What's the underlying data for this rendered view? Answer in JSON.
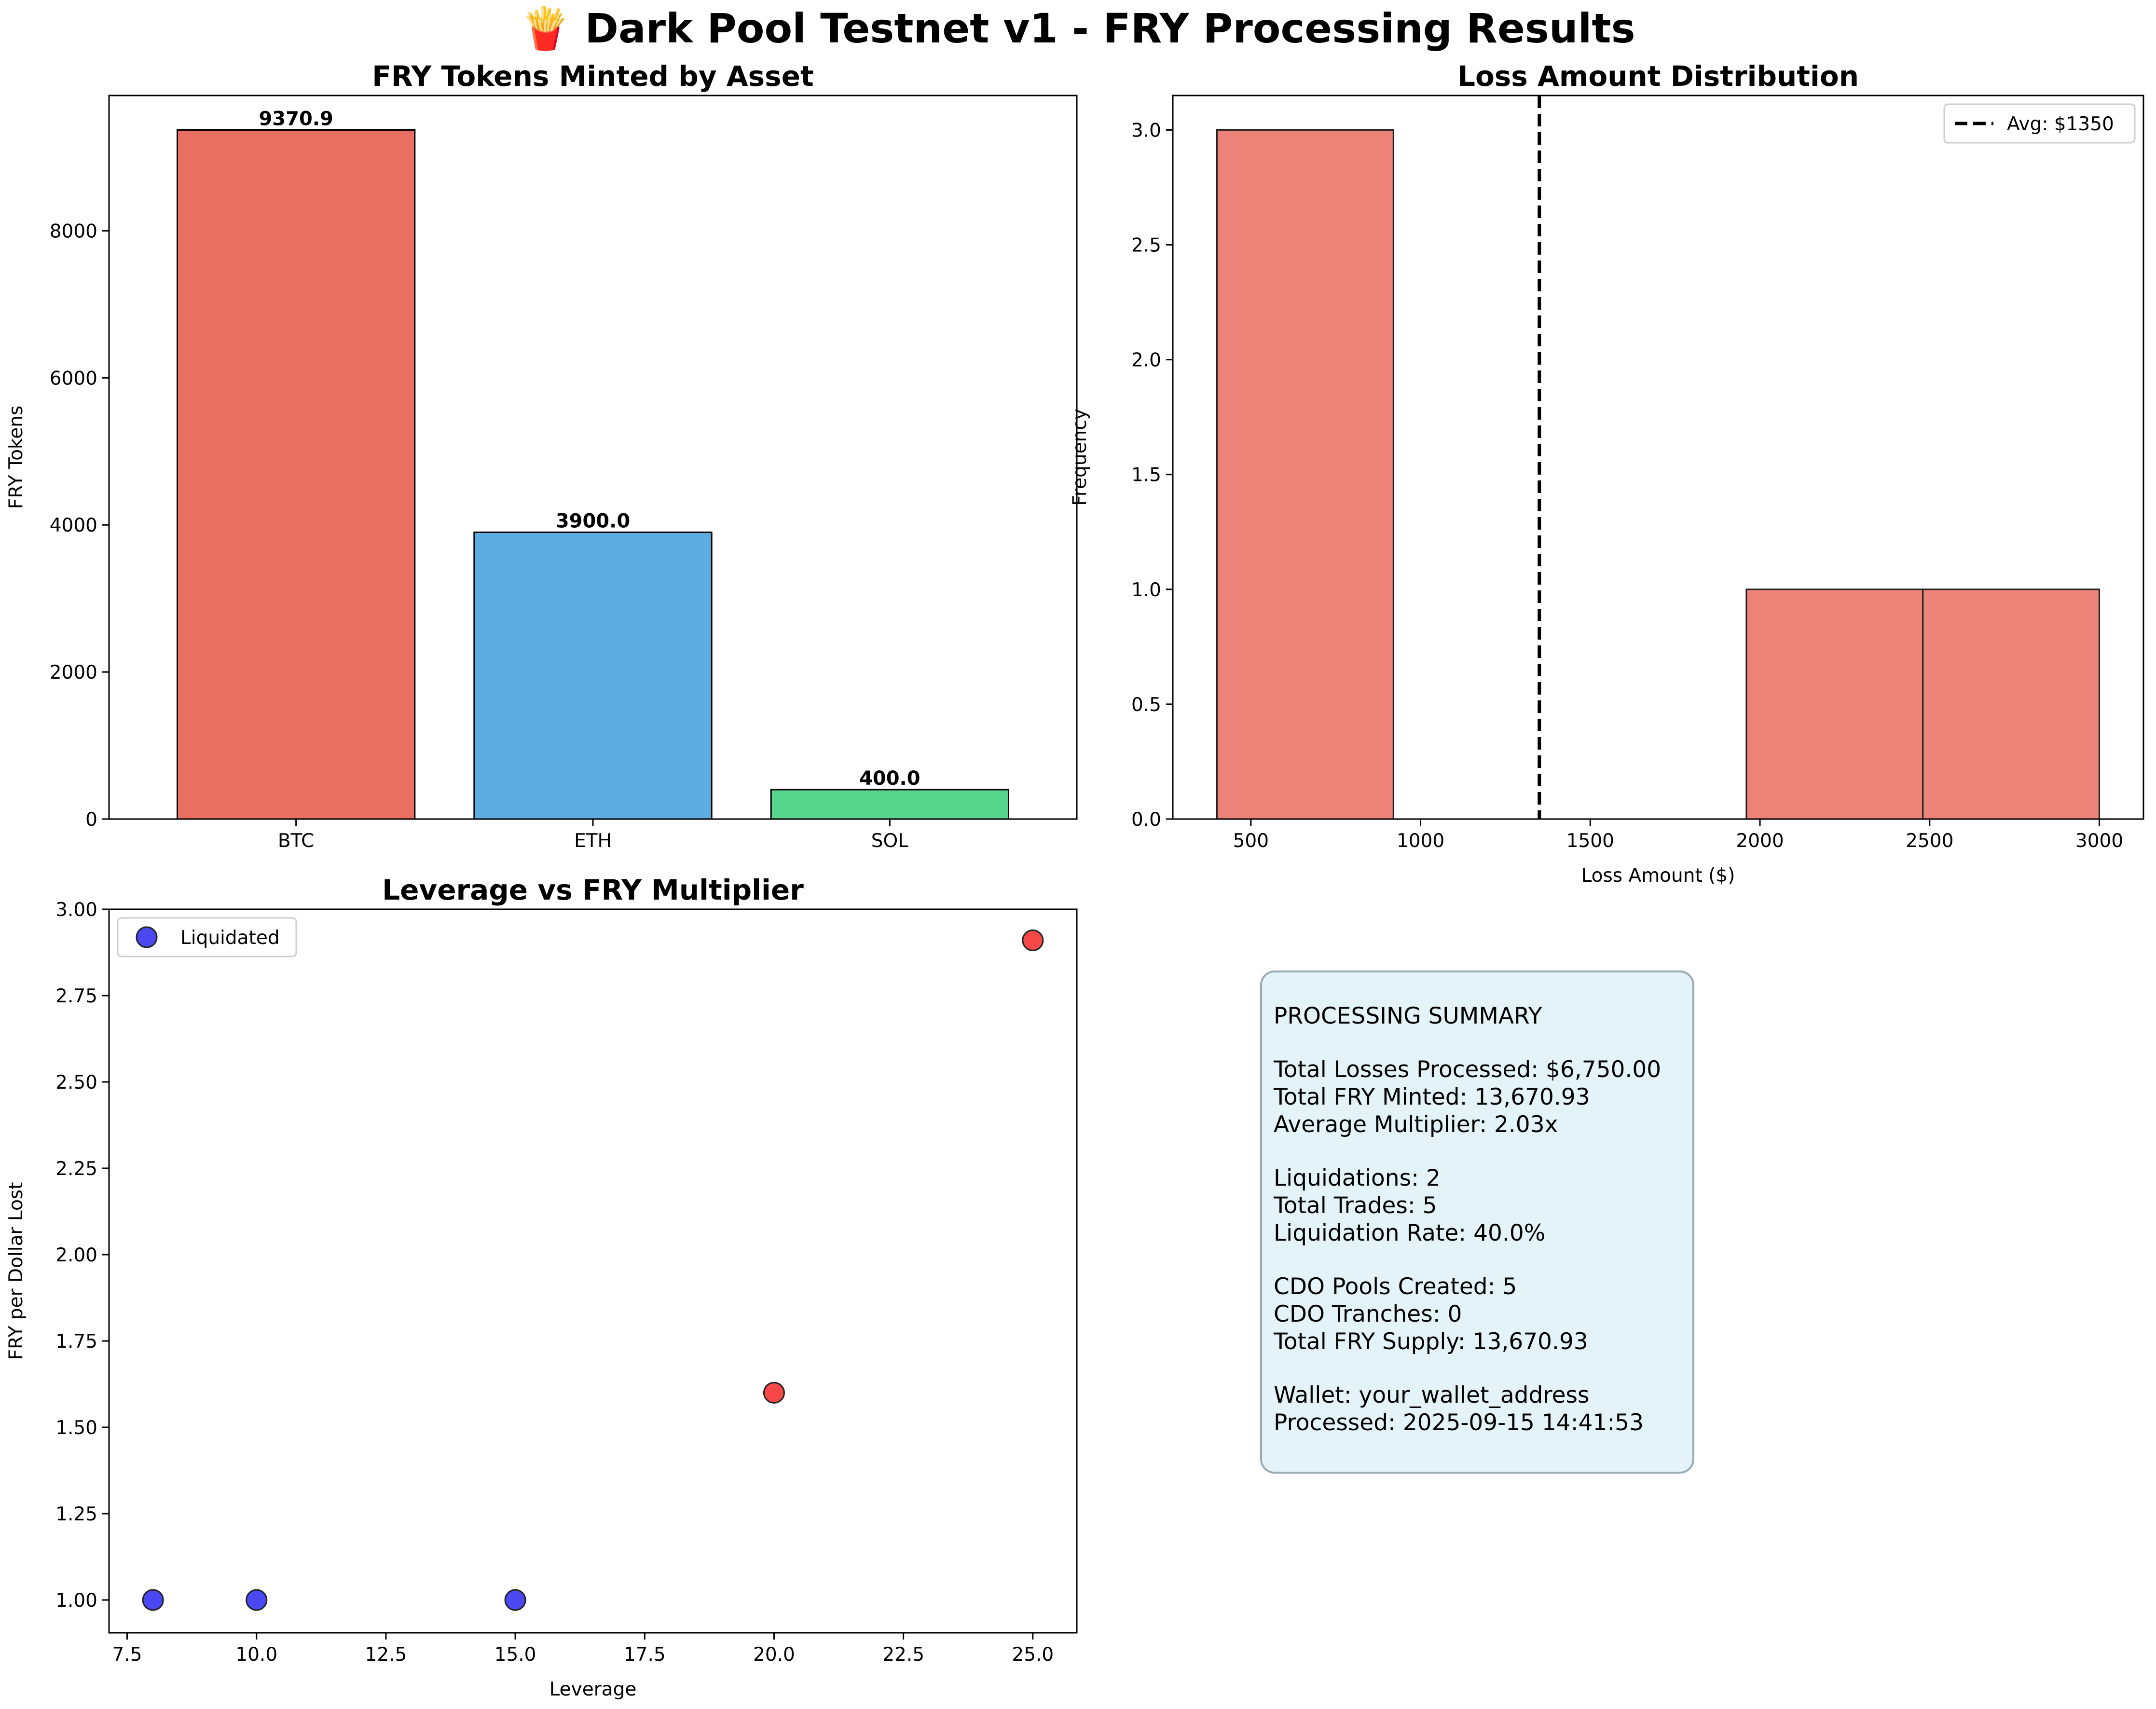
{
  "figure_title": "🍟 Dark Pool Testnet v1 - FRY Processing Results",
  "chart_data": [
    {
      "type": "bar",
      "title": "FRY Tokens Minted by Asset",
      "xlabel": "",
      "ylabel": "FRY Tokens",
      "categories": [
        "BTC",
        "ETH",
        "SOL"
      ],
      "values": [
        9370.9,
        3900.0,
        400.0
      ],
      "value_labels": [
        "9370.9",
        "3900.0",
        "400.0"
      ],
      "colors": [
        "#e96f63",
        "#5dade2",
        "#58d68d"
      ],
      "ylim": [
        0,
        9840
      ],
      "yticks": [
        0,
        2000,
        4000,
        6000,
        8000
      ],
      "ytick_labels": [
        "0",
        "2000",
        "4000",
        "6000",
        "8000"
      ],
      "grid": false
    },
    {
      "type": "bar",
      "subtype": "histogram",
      "title": "Loss Amount Distribution",
      "xlabel": "Loss Amount ($)",
      "ylabel": "Frequency",
      "bins": [
        400,
        920,
        1440,
        1960,
        2480,
        3000
      ],
      "counts": [
        3,
        0,
        0,
        1,
        1
      ],
      "bar_color": "#ec8278",
      "xlim": [
        270,
        3130
      ],
      "ylim": [
        0,
        3.15
      ],
      "xticks": [
        500,
        1000,
        1500,
        2000,
        2500,
        3000
      ],
      "xtick_labels": [
        "500",
        "1000",
        "1500",
        "2000",
        "2500",
        "3000"
      ],
      "yticks": [
        0,
        0.5,
        1.0,
        1.5,
        2.0,
        2.5,
        3.0
      ],
      "ytick_labels": [
        "0.0",
        "0.5",
        "1.0",
        "1.5",
        "2.0",
        "2.5",
        "3.0"
      ],
      "average_line": {
        "x": 1350,
        "label": "Avg: $1350"
      },
      "legend_position": "top-right",
      "grid": false
    },
    {
      "type": "scatter",
      "title": "Leverage vs FRY Multiplier",
      "xlabel": "Leverage",
      "ylabel": "FRY per Dollar Lost",
      "points": [
        {
          "x": 8,
          "y": 1.0,
          "color": "#4a48f0"
        },
        {
          "x": 10,
          "y": 1.0,
          "color": "#4a48f0"
        },
        {
          "x": 15,
          "y": 1.0,
          "color": "#4a48f0"
        },
        {
          "x": 20,
          "y": 1.6,
          "color": "#f64848"
        },
        {
          "x": 25,
          "y": 2.91,
          "color": "#f64848"
        }
      ],
      "xlim": [
        7.15,
        25.85
      ],
      "ylim": [
        0.905,
        3.0
      ],
      "xticks": [
        7.5,
        10,
        12.5,
        15,
        17.5,
        20,
        22.5,
        25
      ],
      "xtick_labels": [
        "7.5",
        "10.0",
        "12.5",
        "15.0",
        "17.5",
        "20.0",
        "22.5",
        "25.0"
      ],
      "yticks": [
        1.0,
        1.25,
        1.5,
        1.75,
        2.0,
        2.25,
        2.5,
        2.75,
        3.0
      ],
      "ytick_labels": [
        "1.00",
        "1.25",
        "1.50",
        "1.75",
        "2.00",
        "2.25",
        "2.50",
        "2.75",
        "3.00"
      ],
      "legend": {
        "label": "Liquidated",
        "color": "#4a48f0",
        "position": "top-left"
      },
      "grid": false
    }
  ],
  "summary": {
    "lines": [
      "PROCESSING SUMMARY",
      "",
      "Total Losses Processed: $6,750.00",
      "Total FRY Minted: 13,670.93",
      "Average Multiplier: 2.03x",
      "",
      "Liquidations: 2",
      "Total Trades: 5",
      "Liquidation Rate: 40.0%",
      "",
      "CDO Pools Created: 5",
      "CDO Tranches: 0",
      "Total FRY Supply: 13,670.93",
      "",
      "Wallet: your_wallet_address",
      "Processed: 2025-09-15 14:41:53"
    ]
  }
}
